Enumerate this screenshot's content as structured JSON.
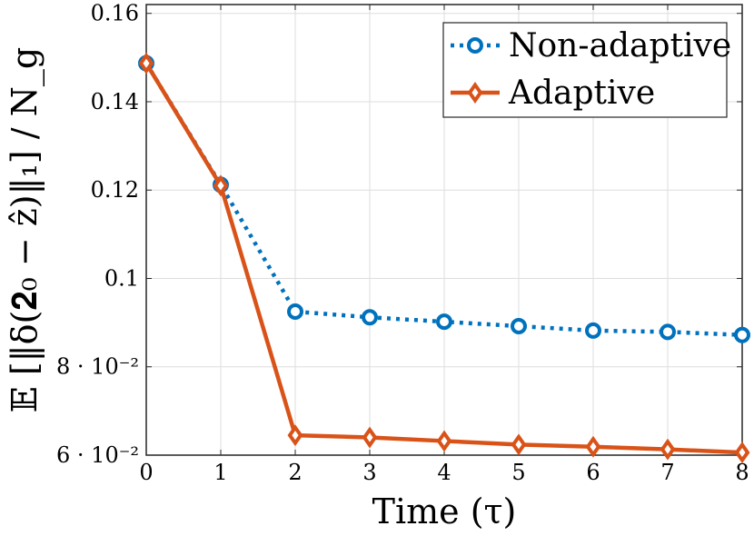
{
  "chart_data": {
    "type": "line",
    "title": "",
    "xlabel": "Time (τ)",
    "ylabel": "𝔼 [‖δ(𝟐₀ − ẑ)‖₁] / N_g",
    "x": [
      0,
      1,
      2,
      3,
      4,
      5,
      6,
      7,
      8
    ],
    "xlim": [
      0,
      8
    ],
    "ylim": [
      0.06,
      0.162
    ],
    "x_ticks": [
      {
        "value": 0,
        "label": "0"
      },
      {
        "value": 1,
        "label": "1"
      },
      {
        "value": 2,
        "label": "2"
      },
      {
        "value": 3,
        "label": "3"
      },
      {
        "value": 4,
        "label": "4"
      },
      {
        "value": 5,
        "label": "5"
      },
      {
        "value": 6,
        "label": "6"
      },
      {
        "value": 7,
        "label": "7"
      },
      {
        "value": 8,
        "label": "8"
      }
    ],
    "y_ticks": [
      {
        "value": 0.06,
        "label": "6 · 10⁻²"
      },
      {
        "value": 0.08,
        "label": "8 · 10⁻²"
      },
      {
        "value": 0.1,
        "label": "0.1"
      },
      {
        "value": 0.12,
        "label": "0.12"
      },
      {
        "value": 0.14,
        "label": "0.14"
      },
      {
        "value": 0.16,
        "label": "0.16"
      }
    ],
    "grid": true,
    "legend_position": "top-right",
    "series": [
      {
        "name": "Non-adaptive",
        "color": "#0072BD",
        "line_style": "dotted",
        "marker": "circle",
        "values": [
          0.1487,
          0.1212,
          0.0925,
          0.0912,
          0.0902,
          0.0892,
          0.0882,
          0.0879,
          0.0872
        ]
      },
      {
        "name": "Adaptive",
        "color": "#D95319",
        "line_style": "solid",
        "marker": "diamond",
        "values": [
          0.1487,
          0.121,
          0.0645,
          0.064,
          0.0632,
          0.0624,
          0.0619,
          0.0613,
          0.0606
        ]
      }
    ]
  }
}
